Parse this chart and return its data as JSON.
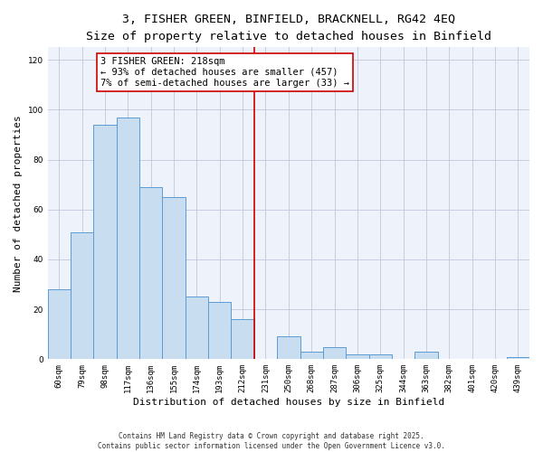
{
  "title1": "3, FISHER GREEN, BINFIELD, BRACKNELL, RG42 4EQ",
  "title2": "Size of property relative to detached houses in Binfield",
  "xlabel": "Distribution of detached houses by size in Binfield",
  "ylabel": "Number of detached properties",
  "bar_color": "#c9ddf0",
  "bar_edge_color": "#5b9bd5",
  "grid_color": "#c0c8dc",
  "bg_color": "#eef2fa",
  "categories": [
    "60sqm",
    "79sqm",
    "98sqm",
    "117sqm",
    "136sqm",
    "155sqm",
    "174sqm",
    "193sqm",
    "212sqm",
    "231sqm",
    "250sqm",
    "268sqm",
    "287sqm",
    "306sqm",
    "325sqm",
    "344sqm",
    "363sqm",
    "382sqm",
    "401sqm",
    "420sqm",
    "439sqm"
  ],
  "values": [
    28,
    51,
    94,
    97,
    69,
    65,
    25,
    23,
    16,
    0,
    9,
    3,
    5,
    2,
    2,
    0,
    3,
    0,
    0,
    0,
    1
  ],
  "vline_x": 8.5,
  "vline_color": "#cc0000",
  "annotation_text": "3 FISHER GREEN: 218sqm\n← 93% of detached houses are smaller (457)\n7% of semi-detached houses are larger (33) →",
  "annotation_box_color": "white",
  "annotation_edge_color": "#cc0000",
  "ylim": [
    0,
    125
  ],
  "yticks": [
    0,
    20,
    40,
    60,
    80,
    100,
    120
  ],
  "footnote": "Contains HM Land Registry data © Crown copyright and database right 2025.\nContains public sector information licensed under the Open Government Licence v3.0.",
  "title_fontsize": 9.5,
  "subtitle_fontsize": 8.5,
  "tick_fontsize": 6.5,
  "ylabel_fontsize": 8,
  "xlabel_fontsize": 8,
  "annotation_fontsize": 7.5,
  "footnote_fontsize": 5.5
}
